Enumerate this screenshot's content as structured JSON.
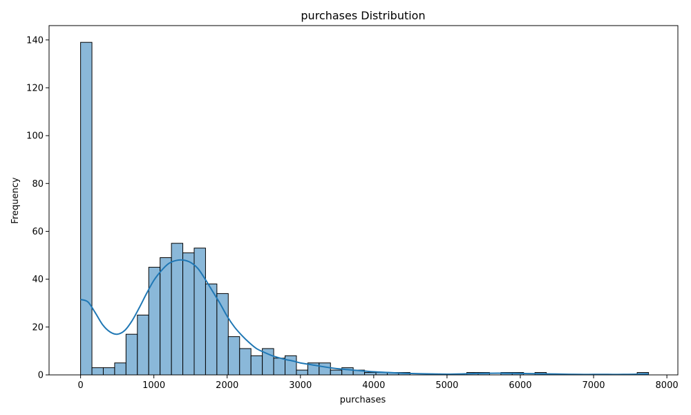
{
  "chart_data": {
    "type": "bar",
    "title": "purchases Distribution",
    "xlabel": "purchases",
    "ylabel": "Frequency",
    "xlim": [
      -430,
      8150
    ],
    "ylim": [
      0,
      146
    ],
    "x_ticks": [
      0,
      1000,
      2000,
      3000,
      4000,
      5000,
      6000,
      7000,
      8000
    ],
    "y_ticks": [
      0,
      20,
      40,
      60,
      80,
      100,
      120,
      140
    ],
    "grid": false,
    "legend": "none",
    "bin_width": 155,
    "bin_start": 0,
    "bins": [
      {
        "x0": 0,
        "x1": 155,
        "count": 139
      },
      {
        "x0": 155,
        "x1": 310,
        "count": 3
      },
      {
        "x0": 310,
        "x1": 465,
        "count": 3
      },
      {
        "x0": 465,
        "x1": 620,
        "count": 5
      },
      {
        "x0": 620,
        "x1": 775,
        "count": 17
      },
      {
        "x0": 775,
        "x1": 930,
        "count": 25
      },
      {
        "x0": 930,
        "x1": 1085,
        "count": 45
      },
      {
        "x0": 1085,
        "x1": 1240,
        "count": 49
      },
      {
        "x0": 1240,
        "x1": 1395,
        "count": 55
      },
      {
        "x0": 1395,
        "x1": 1550,
        "count": 51
      },
      {
        "x0": 1550,
        "x1": 1705,
        "count": 53
      },
      {
        "x0": 1705,
        "x1": 1860,
        "count": 38
      },
      {
        "x0": 1860,
        "x1": 2015,
        "count": 34
      },
      {
        "x0": 2015,
        "x1": 2170,
        "count": 16
      },
      {
        "x0": 2170,
        "x1": 2325,
        "count": 11
      },
      {
        "x0": 2325,
        "x1": 2480,
        "count": 8
      },
      {
        "x0": 2480,
        "x1": 2635,
        "count": 11
      },
      {
        "x0": 2635,
        "x1": 2790,
        "count": 7
      },
      {
        "x0": 2790,
        "x1": 2945,
        "count": 8
      },
      {
        "x0": 2945,
        "x1": 3100,
        "count": 2
      },
      {
        "x0": 3100,
        "x1": 3255,
        "count": 5
      },
      {
        "x0": 3255,
        "x1": 3410,
        "count": 5
      },
      {
        "x0": 3410,
        "x1": 3565,
        "count": 2
      },
      {
        "x0": 3565,
        "x1": 3720,
        "count": 3
      },
      {
        "x0": 3720,
        "x1": 3875,
        "count": 2
      },
      {
        "x0": 3875,
        "x1": 4030,
        "count": 1
      },
      {
        "x0": 4030,
        "x1": 4185,
        "count": 1
      },
      {
        "x0": 4185,
        "x1": 4340,
        "count": 1
      },
      {
        "x0": 4340,
        "x1": 4495,
        "count": 1
      },
      {
        "x0": 5270,
        "x1": 5425,
        "count": 1
      },
      {
        "x0": 5425,
        "x1": 5580,
        "count": 1
      },
      {
        "x0": 5735,
        "x1": 5890,
        "count": 1
      },
      {
        "x0": 5890,
        "x1": 6045,
        "count": 1
      },
      {
        "x0": 6200,
        "x1": 6355,
        "count": 1
      },
      {
        "x0": 7595,
        "x1": 7750,
        "count": 1
      }
    ],
    "kde": {
      "x": [
        0,
        100,
        200,
        300,
        400,
        500,
        600,
        700,
        800,
        900,
        1000,
        1100,
        1200,
        1300,
        1400,
        1500,
        1600,
        1700,
        1800,
        1900,
        2000,
        2100,
        2200,
        2300,
        2400,
        2500,
        2600,
        2700,
        2800,
        2900,
        3000,
        3200,
        3400,
        3600,
        3800,
        4000,
        4200,
        4400,
        4600,
        4800,
        5000,
        5200,
        5400,
        5600,
        5800,
        6000,
        6200,
        6400,
        6600,
        6800,
        7000,
        7200,
        7400,
        7600,
        7750
      ],
      "y": [
        31.5,
        30.5,
        26,
        21,
        18,
        17,
        18.5,
        22.5,
        28,
        34,
        39.5,
        43.5,
        46.5,
        47.8,
        48,
        47,
        44.5,
        40,
        35,
        30,
        24.5,
        20,
        16.5,
        13.5,
        11,
        9.5,
        8.2,
        7.2,
        6.4,
        5.8,
        5,
        4,
        3,
        2.3,
        1.8,
        1.3,
        1,
        0.7,
        0.5,
        0.4,
        0.3,
        0.4,
        0.6,
        0.7,
        0.7,
        0.6,
        0.5,
        0.4,
        0.3,
        0.2,
        0.2,
        0.2,
        0.2,
        0.3,
        0.4
      ]
    },
    "colors": {
      "bar_fill": "#8ab8d9",
      "bar_edge": "#000000",
      "kde_line": "#1f77b4"
    }
  }
}
